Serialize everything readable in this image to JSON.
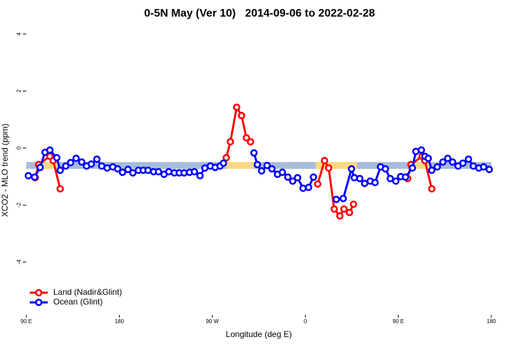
{
  "chart_data": {
    "type": "line",
    "title": "0-5N May (Ver 10)   2014-09-06 to 2022-02-28",
    "x_label": "Longitude (deg E)",
    "y_label": "XCO2 - MLO trend (ppm)",
    "xlim": [
      90,
      540
    ],
    "ylim": [
      -5.85,
      4.27
    ],
    "xticks": [
      {
        "value": 90,
        "label": "90 E"
      },
      180,
      {
        "value": 270,
        "label": "90 W"
      },
      {
        "value": 360,
        "label": "0"
      },
      {
        "value": 450,
        "label": "90 E"
      },
      {
        "value": 540,
        "label": "180"
      }
    ],
    "yticks": [
      4,
      2,
      0,
      -2,
      -4
    ],
    "legend": "bottom-left",
    "band": {
      "ymin": -0.73,
      "ymax": -0.49,
      "color": "#a7bddb",
      "land_color": "#fdd882",
      "land_ranges": [
        [
          100,
          120
        ],
        [
          283,
          310
        ],
        [
          370,
          410
        ],
        [
          460,
          480
        ]
      ]
    },
    "series": [
      {
        "name": "Land (Nadir&Glint)",
        "color": "#ff0000",
        "x": [
          98.7,
          102,
          112.8,
          116,
          122.8,
          200,
          283.5,
          287.5,
          293.6,
          298.3,
          303,
          307,
          340,
          372,
          378.6,
          382.6,
          388,
          393.4,
          397.4,
          402.7,
          406.7,
          430,
          459,
          462.3,
          473,
          475.7,
          482.4
        ],
        "values": [
          -1.04,
          -0.58,
          -0.29,
          -0.44,
          -1.43,
          null,
          -0.34,
          0.22,
          1.43,
          1.14,
          0.36,
          0.22,
          null,
          -1.26,
          -0.44,
          -0.7,
          -2.14,
          -2.38,
          -2.14,
          -2.26,
          -1.97,
          null,
          -1.07,
          -0.58,
          -0.29,
          -0.44,
          -1.43
        ]
      },
      {
        "name": "Ocean (Glint)",
        "color": "#0000ff",
        "x": [
          92,
          98,
          103.4,
          108.1,
          112.8,
          119.5,
          122.8,
          128.2,
          132.9,
          138.2,
          143.6,
          148.3,
          152.9,
          158.3,
          163,
          168.3,
          173.7,
          178.4,
          183.1,
          188.4,
          193.1,
          198.5,
          203.2,
          207.8,
          213.2,
          217.9,
          223.3,
          227.9,
          233.3,
          238,
          242.7,
          248,
          252.7,
          258.1,
          262.8,
          268.1,
          272.8,
          277.5,
          280.8,
          290,
          310.3,
          313.6,
          317.7,
          323,
          327.7,
          333.1,
          337.8,
          343.1,
          347.8,
          352.5,
          357.8,
          363.2,
          367.9,
          375,
          390,
          396.7,
          404.7,
          407.4,
          412.7,
          417.4,
          422.8,
          427.5,
          432.8,
          437.5,
          442.2,
          447.6,
          452.3,
          457,
          463.6,
          467,
          472.3,
          475.7,
          479,
          482.4,
          487.7,
          493.1,
          497.8,
          502.5,
          507.8,
          512.5,
          517.9,
          522.6,
          527.9,
          532.6,
          538
        ],
        "values": [
          -0.97,
          -1.02,
          -0.68,
          -0.15,
          -0.07,
          -0.34,
          -0.78,
          -0.63,
          -0.51,
          -0.36,
          -0.49,
          -0.63,
          -0.56,
          -0.39,
          -0.63,
          -0.7,
          -0.66,
          -0.73,
          -0.85,
          -0.75,
          -0.87,
          -0.78,
          -0.78,
          -0.78,
          -0.83,
          -0.83,
          -0.92,
          -0.83,
          -0.87,
          -0.87,
          -0.87,
          -0.85,
          -0.83,
          -0.97,
          -0.7,
          -0.63,
          -0.68,
          -0.63,
          -0.53,
          null,
          -0.17,
          -0.58,
          -0.8,
          -0.61,
          -0.73,
          -0.92,
          -0.85,
          -1.02,
          -1.16,
          -1.04,
          -1.41,
          -1.38,
          -1.02,
          null,
          -1.8,
          -1.77,
          -0.73,
          -1.04,
          -1.07,
          -1.24,
          -1.16,
          -1.21,
          -0.66,
          -0.73,
          -1.07,
          -1.16,
          -1,
          -1.02,
          -0.7,
          -0.12,
          -0.07,
          -0.29,
          -0.36,
          -0.78,
          -0.66,
          -0.49,
          -0.36,
          -0.49,
          -0.63,
          -0.53,
          -0.39,
          -0.63,
          -0.7,
          -0.66,
          -0.75
        ]
      }
    ]
  }
}
